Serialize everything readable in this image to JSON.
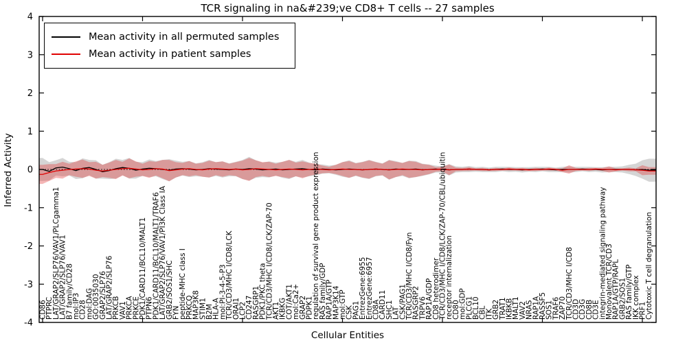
{
  "title": "TCR signaling in na&#239;ve CD8+ T cells -- 27 samples",
  "legend": {
    "items": [
      {
        "label": "Mean activity in all permuted samples",
        "color": "#000000"
      },
      {
        "label": "Mean activity in patient samples",
        "color": "#e00000"
      }
    ]
  },
  "chart_data": {
    "type": "line",
    "title": "TCR signaling in na&#239;ve CD8+ T cells -- 27 samples",
    "xlabel": "Cellular Entities",
    "ylabel": "Inferred Activity",
    "ylim": [
      -4,
      4
    ],
    "yticks": [
      4,
      3,
      2,
      1,
      0,
      -1,
      -2,
      -3,
      -4
    ],
    "grid": false,
    "legend_position": "upper left",
    "zero_reference_line": "dotted",
    "band_meaning": "±1 std shaded band around each mean line",
    "categories": [
      "CD86",
      "PTPRC",
      "LAT/GRAP2/SLP76/VAV1/PLCgamma1",
      "LAT/GRAP2/SLP76/VAV1",
      "B7 family/CD28",
      "mol:IP3",
      "CD28",
      "mol:DAG",
      "GO:0035030",
      "GRAP2/SLP76",
      "LAT/GRAP2/SLP76",
      "PRKCB",
      "VAV1",
      "PRKCA",
      "PRKCE",
      "PDK1/CARD11/BCL10/MALT1",
      "PTPN6",
      "PDK1/CARD11/BCL10/MALT1/TRAF6",
      "LAT/GRAP2/SLP76/VAV1/PI3K Class IA",
      "GRB2/SOS1/SHC",
      "FYN",
      "peptide-MHC class I",
      "PRKCQ",
      "MAP3K8",
      "STIM1",
      "B2M",
      "HLA-A",
      "mol:PI-3-4-5-P3",
      "TCR/CD3/MHC I/CD8/LCK",
      "ORAI1",
      "LCP2",
      "CD247",
      "RASGRP1",
      "PDK1/PKC theta",
      "TCR/CD3/MHC I/CD8/LCK/ZAP-70",
      "AKT1",
      "IKBKG",
      "COT/AKT1",
      "mol:Ca2+",
      "GRAP2",
      "PDPK1",
      "regulation of survival gene product expression",
      "RAS family/GDP",
      "RAP1A/GTP",
      "MAP3K14",
      "mol:GTP",
      "CSK",
      "PAG1",
      "EntrezGene:6955",
      "EntrezGene:6957",
      "CD8A",
      "CARD11",
      "SHC1",
      "LAT",
      "CSK/PAG1",
      "TCR/CD3/MHC I/CD8/Fyn",
      "RASGRP2",
      "TRPV6",
      "RAP1A/GDP",
      "CD8 heterodimer",
      "TCR/CD3/MHC I/CD8/LCK/ZAP-70/CBL/ubiquitin",
      "receptor internalization",
      "CD80",
      "mol:GDP",
      "PLCG1",
      "BCL10",
      "CBL",
      "ITK",
      "GRB2",
      "TRAT1",
      "IKBKB",
      "MALT1",
      "VAV2",
      "NRAS",
      "RAP1A",
      "RASSF5",
      "SOS1",
      "TRAF6",
      "ZAP70",
      "TCR/CD3/MHC I/CD8",
      "CD3D",
      "CD3G",
      "CD8B",
      "CD3E",
      "integrin-mediated signaling pathway",
      "Monovalent TCR/CD3",
      "RAP1A/GTP/RAPL",
      "GRB2/SOS1",
      "RAS family/GTP",
      "IKK complex",
      "PRF1",
      "Cytotoxic T cell degranulation"
    ],
    "series": [
      {
        "name": "Mean activity in all permuted samples",
        "color": "#000000",
        "band_color": "rgba(125,125,125,0.32)",
        "values": [
          0.0,
          -0.05,
          0.04,
          0.06,
          0.02,
          -0.03,
          0.03,
          0.05,
          0.0,
          -0.06,
          -0.03,
          0.02,
          0.05,
          0.03,
          -0.02,
          0.01,
          0.03,
          0.02,
          0.0,
          -0.02,
          0.01,
          0.02,
          0.01,
          -0.01,
          0.0,
          0.02,
          0.01,
          0.0,
          -0.01,
          0.01,
          0.0,
          0.02,
          0.01,
          -0.01,
          0.0,
          0.01,
          -0.01,
          0.0,
          0.01,
          0.02,
          0.0,
          -0.01,
          0.01,
          0.0,
          -0.01,
          0.0,
          0.01,
          0.0,
          -0.01,
          0.0,
          0.01,
          0.0,
          -0.01,
          0.01,
          0.0,
          0.0,
          0.01,
          -0.01,
          0.0,
          0.01,
          0.0,
          -0.01,
          0.0,
          0.0,
          0.01,
          0.0,
          0.0,
          -0.01,
          0.0,
          0.01,
          0.0,
          0.0,
          -0.01,
          0.0,
          0.0,
          0.01,
          0.0,
          -0.01,
          0.0,
          0.0,
          0.0,
          0.01,
          0.0,
          0.0,
          -0.01,
          0.0,
          0.0,
          0.0,
          0.0,
          -0.01,
          0.0,
          -0.02
        ],
        "band_halfwidth": [
          0.3,
          0.24,
          0.2,
          0.24,
          0.18,
          0.22,
          0.26,
          0.2,
          0.24,
          0.18,
          0.22,
          0.26,
          0.2,
          0.27,
          0.22,
          0.18,
          0.23,
          0.2,
          0.25,
          0.29,
          0.22,
          0.18,
          0.21,
          0.17,
          0.19,
          0.23,
          0.18,
          0.21,
          0.17,
          0.19,
          0.25,
          0.31,
          0.23,
          0.19,
          0.21,
          0.17,
          0.21,
          0.25,
          0.19,
          0.23,
          0.18,
          0.15,
          0.12,
          0.1,
          0.13,
          0.19,
          0.23,
          0.17,
          0.21,
          0.25,
          0.19,
          0.16,
          0.26,
          0.21,
          0.17,
          0.23,
          0.21,
          0.16,
          0.13,
          0.09,
          0.08,
          0.15,
          0.08,
          0.07,
          0.08,
          0.06,
          0.07,
          0.06,
          0.07,
          0.06,
          0.07,
          0.06,
          0.07,
          0.06,
          0.07,
          0.06,
          0.07,
          0.06,
          0.07,
          0.08,
          0.07,
          0.06,
          0.07,
          0.06,
          0.07,
          0.07,
          0.07,
          0.08,
          0.12,
          0.16,
          0.24,
          0.3
        ]
      },
      {
        "name": "Mean activity in patient samples",
        "color": "#e00000",
        "band_color": "rgba(225,45,45,0.35)",
        "values": [
          -0.13,
          -0.08,
          -0.04,
          -0.02,
          0.0,
          0.01,
          0.02,
          0.01,
          -0.02,
          -0.04,
          -0.02,
          0.0,
          0.02,
          0.03,
          0.01,
          -0.01,
          0.0,
          0.02,
          0.01,
          -0.03,
          -0.01,
          0.01,
          0.02,
          0.0,
          -0.01,
          0.01,
          0.02,
          0.01,
          0.0,
          0.01,
          -0.01,
          0.0,
          0.02,
          0.01,
          0.0,
          -0.01,
          0.0,
          0.01,
          0.0,
          -0.01,
          0.0,
          0.01,
          0.0,
          -0.01,
          0.0,
          0.01,
          0.0,
          0.0,
          -0.01,
          0.0,
          0.01,
          0.0,
          -0.01,
          0.0,
          0.01,
          0.0,
          0.0,
          -0.01,
          0.0,
          0.0,
          0.01,
          -0.01,
          0.0,
          0.0,
          0.01,
          0.0,
          0.0,
          -0.01,
          0.0,
          0.0,
          0.01,
          0.0,
          0.0,
          -0.01,
          0.0,
          0.0,
          0.01,
          0.0,
          -0.02,
          0.0,
          0.0,
          0.0,
          0.0,
          0.01,
          0.0,
          0.0,
          -0.01,
          0.0,
          0.0,
          -0.01,
          -0.02,
          -0.04
        ],
        "band_halfwidth": [
          0.25,
          0.22,
          0.18,
          0.22,
          0.15,
          0.2,
          0.24,
          0.18,
          0.22,
          0.16,
          0.2,
          0.25,
          0.18,
          0.26,
          0.2,
          0.16,
          0.22,
          0.18,
          0.24,
          0.28,
          0.2,
          0.16,
          0.2,
          0.15,
          0.18,
          0.22,
          0.17,
          0.2,
          0.15,
          0.18,
          0.24,
          0.3,
          0.22,
          0.18,
          0.2,
          0.16,
          0.2,
          0.24,
          0.18,
          0.22,
          0.17,
          0.14,
          0.1,
          0.08,
          0.12,
          0.18,
          0.22,
          0.16,
          0.2,
          0.24,
          0.18,
          0.15,
          0.25,
          0.2,
          0.16,
          0.22,
          0.2,
          0.15,
          0.12,
          0.06,
          0.06,
          0.14,
          0.05,
          0.04,
          0.05,
          0.03,
          0.04,
          0.03,
          0.04,
          0.03,
          0.04,
          0.03,
          0.04,
          0.03,
          0.04,
          0.03,
          0.04,
          0.03,
          0.05,
          0.11,
          0.04,
          0.03,
          0.04,
          0.03,
          0.04,
          0.08,
          0.04,
          0.03,
          0.05,
          0.04,
          0.13,
          0.1
        ]
      }
    ]
  }
}
